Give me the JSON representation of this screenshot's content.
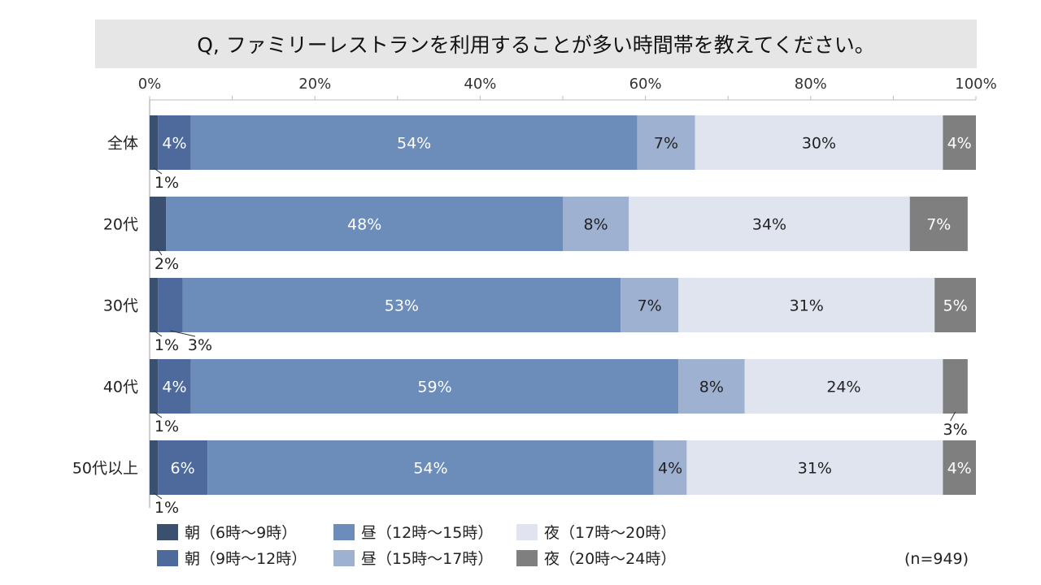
{
  "chart_data": {
    "type": "bar",
    "orientation": "horizontal",
    "stacked": true,
    "title": "Q, ファミリーレストランを利用することが多い時間帯を教えてください。",
    "xlim": [
      0,
      100
    ],
    "x_ticks": [
      "0%",
      "20%",
      "40%",
      "60%",
      "80%",
      "100%"
    ],
    "categories": [
      "全体",
      "20代",
      "30代",
      "40代",
      "50代以上"
    ],
    "series": [
      {
        "name": "朝（6時～9時）",
        "color": "#3b4f6e",
        "values": [
          1,
          2,
          1,
          1,
          1
        ],
        "labels": [
          "1%",
          "2%",
          "1%",
          "1%",
          "1%"
        ]
      },
      {
        "name": "朝（9時～12時）",
        "color": "#4e6a9c",
        "values": [
          4,
          0,
          3,
          4,
          6
        ],
        "labels": [
          "4%",
          "",
          "3%",
          "4%",
          "6%"
        ]
      },
      {
        "name": "昼（12時～15時）",
        "color": "#6c8cb9",
        "values": [
          54,
          48,
          53,
          59,
          54
        ],
        "labels": [
          "54%",
          "48%",
          "53%",
          "59%",
          "54%"
        ]
      },
      {
        "name": "昼（15時～17時）",
        "color": "#9fb1d0",
        "values": [
          7,
          8,
          7,
          8,
          4
        ],
        "labels": [
          "7%",
          "8%",
          "7%",
          "8%",
          "4%"
        ]
      },
      {
        "name": "夜（17時～20時）",
        "color": "#dfe4ee",
        "values": [
          30,
          34,
          31,
          24,
          31
        ],
        "labels": [
          "30%",
          "34%",
          "31%",
          "24%",
          "31%"
        ]
      },
      {
        "name": "夜（20時～24時）",
        "color": "#7f7f7f",
        "values": [
          4,
          7,
          5,
          3,
          4
        ],
        "labels": [
          "4%",
          "7%",
          "5%",
          "3%",
          "4%"
        ]
      }
    ],
    "legend": "bottom",
    "note": "(n=949)"
  }
}
